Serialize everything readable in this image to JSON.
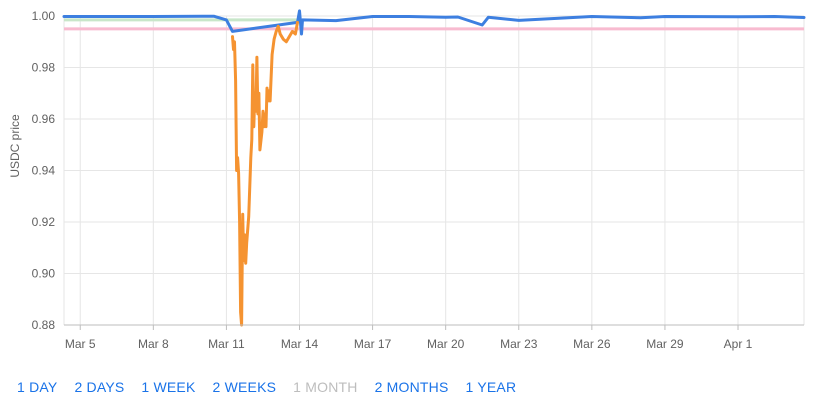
{
  "chart_data": {
    "type": "line",
    "ylabel": "USDC price",
    "ylim": [
      0.88,
      1.0
    ],
    "y_ticks": [
      "0.88",
      "0.90",
      "0.92",
      "0.94",
      "0.96",
      "0.98",
      "1.00"
    ],
    "x_ticks": [
      "Mar 5",
      "Mar 8",
      "Mar 11",
      "Mar 14",
      "Mar 17",
      "Mar 20",
      "Mar 23",
      "Mar 26",
      "Mar 29",
      "Apr 1"
    ],
    "x_range": [
      "2023-03-04T08:00",
      "2023-04-03T17:00"
    ],
    "reference_lines": [
      {
        "value": 0.9985,
        "color": "#c8e6c9",
        "x_end": "2023-03-14"
      },
      {
        "value": 0.995,
        "color": "#f8bbd0"
      }
    ],
    "series": [
      {
        "color": "#3d7fe0",
        "points": [
          [
            "2023-03-04T08:00",
            0.9998
          ],
          [
            "2023-03-08T00:00",
            0.9998
          ],
          [
            "2023-03-10T00:00",
            0.9999
          ],
          [
            "2023-03-10T12:00",
            0.9999
          ],
          [
            "2023-03-11T00:00",
            0.9985
          ],
          [
            "2023-03-11T06:00",
            0.994
          ],
          [
            "2023-03-13T22:00",
            0.9975
          ],
          [
            "2023-03-14T00:00",
            1.002
          ],
          [
            "2023-03-14T02:00",
            0.993
          ],
          [
            "2023-03-14T03:00",
            0.9985
          ],
          [
            "2023-03-15T12:00",
            0.9982
          ],
          [
            "2023-03-17T00:00",
            0.9998
          ],
          [
            "2023-03-18T12:00",
            0.9998
          ],
          [
            "2023-03-20T00:00",
            0.9995
          ],
          [
            "2023-03-20T12:00",
            0.9996
          ],
          [
            "2023-03-21T12:00",
            0.9965
          ],
          [
            "2023-03-21T18:00",
            0.9995
          ],
          [
            "2023-03-23T00:00",
            0.9983
          ],
          [
            "2023-03-26T00:00",
            0.9998
          ],
          [
            "2023-03-28T00:00",
            0.9993
          ],
          [
            "2023-03-29T00:00",
            0.9998
          ],
          [
            "2023-04-01T00:00",
            0.9997
          ],
          [
            "2023-04-02T12:00",
            0.9998
          ],
          [
            "2023-04-03T17:00",
            0.9994
          ]
        ]
      },
      {
        "color": "#f59331",
        "points": [
          [
            "2023-03-11T06:00",
            0.992
          ],
          [
            "2023-03-11T07:00",
            0.987
          ],
          [
            "2023-03-11T08:00",
            0.99
          ],
          [
            "2023-03-11T09:00",
            0.975
          ],
          [
            "2023-03-11T10:00",
            0.94
          ],
          [
            "2023-03-11T11:00",
            0.945
          ],
          [
            "2023-03-11T12:00",
            0.939
          ],
          [
            "2023-03-11T13:00",
            0.92
          ],
          [
            "2023-03-11T14:00",
            0.885
          ],
          [
            "2023-03-11T15:00",
            0.88
          ],
          [
            "2023-03-11T16:00",
            0.923
          ],
          [
            "2023-03-11T17:00",
            0.905
          ],
          [
            "2023-03-11T18:00",
            0.915
          ],
          [
            "2023-03-11T19:00",
            0.904
          ],
          [
            "2023-03-11T20:00",
            0.912
          ],
          [
            "2023-03-11T22:00",
            0.922
          ],
          [
            "2023-03-12T00:00",
            0.945
          ],
          [
            "2023-03-12T01:00",
            0.952
          ],
          [
            "2023-03-12T02:00",
            0.981
          ],
          [
            "2023-03-12T03:00",
            0.957
          ],
          [
            "2023-03-12T04:00",
            0.97
          ],
          [
            "2023-03-12T05:00",
            0.963
          ],
          [
            "2023-03-12T06:00",
            0.984
          ],
          [
            "2023-03-12T07:00",
            0.962
          ],
          [
            "2023-03-12T08:00",
            0.97
          ],
          [
            "2023-03-12T09:00",
            0.948
          ],
          [
            "2023-03-12T11:00",
            0.955
          ],
          [
            "2023-03-12T12:00",
            0.963
          ],
          [
            "2023-03-12T13:00",
            0.957
          ],
          [
            "2023-03-12T14:00",
            0.962
          ],
          [
            "2023-03-12T15:00",
            0.957
          ],
          [
            "2023-03-12T16:00",
            0.972
          ],
          [
            "2023-03-12T17:00",
            0.967
          ],
          [
            "2023-03-12T18:00",
            0.971
          ],
          [
            "2023-03-12T19:00",
            0.967
          ],
          [
            "2023-03-12T21:00",
            0.985
          ],
          [
            "2023-03-12T23:00",
            0.991
          ],
          [
            "2023-03-13T01:00",
            0.994
          ],
          [
            "2023-03-13T03:00",
            0.996
          ],
          [
            "2023-03-13T05:00",
            0.993
          ],
          [
            "2023-03-13T08:00",
            0.991
          ],
          [
            "2023-03-13T11:00",
            0.99
          ],
          [
            "2023-03-13T14:00",
            0.992
          ],
          [
            "2023-03-13T17:00",
            0.994
          ],
          [
            "2023-03-13T20:00",
            0.993
          ],
          [
            "2023-03-13T22:00",
            0.9975
          ]
        ]
      }
    ]
  },
  "range_buttons": {
    "day": "1 DAY",
    "two_days": "2 DAYS",
    "week": "1 WEEK",
    "two_weeks": "2 WEEKS",
    "month": "1 MONTH",
    "two_months": "2 MONTHS",
    "year": "1 YEAR"
  }
}
